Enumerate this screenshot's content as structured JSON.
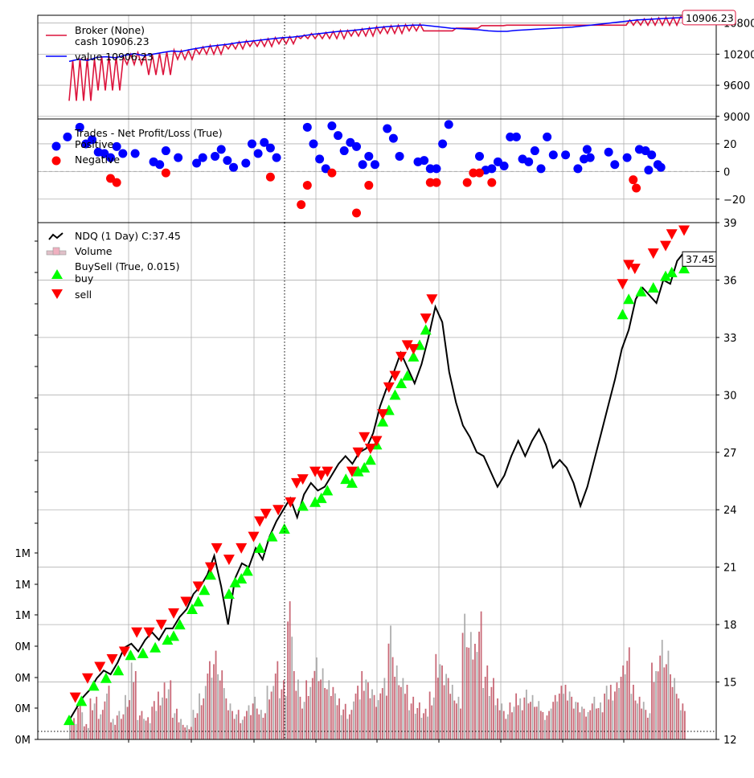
{
  "chart_data": [
    {
      "type": "line",
      "panel": "broker",
      "legend": [
        "Broker (None)",
        "cash 10906.23",
        "value 10906.23"
      ],
      "last_value_label": "10906.23",
      "ylim": [
        8950,
        10950
      ],
      "yticks": [
        "9000",
        "9600",
        "10200",
        "10800"
      ],
      "colors": {
        "cash": "#dc143c",
        "value": "#0000ff"
      },
      "series": [
        {
          "name": "value 10906.23",
          "values": [
            10060,
            10100,
            10080,
            10140,
            10150,
            10130,
            10180,
            10210,
            10170,
            10200,
            10230,
            10260,
            10250,
            10290,
            10320,
            10350,
            10370,
            10390,
            10420,
            10440,
            10460,
            10480,
            10500,
            10520,
            10530,
            10550,
            10580,
            10600,
            10620,
            10640,
            10650,
            10670,
            10690,
            10710,
            10730,
            10740,
            10750,
            10760,
            10760,
            10740,
            10720,
            10700,
            10690,
            10680,
            10670,
            10650,
            10640,
            10640,
            10660,
            10670,
            10680,
            10690,
            10700,
            10710,
            10720,
            10740,
            10760,
            10780,
            10800,
            10820,
            10840,
            10860,
            10870,
            10880,
            10890,
            10900,
            10906.23
          ]
        },
        {
          "name": "cash 10906.23",
          "values": [
            9300,
            9500,
            10000,
            9800,
            10100,
            10200,
            10300,
            10350,
            10400,
            10500,
            10500,
            10550,
            10600,
            10650,
            10650,
            10700,
            10750,
            10760,
            10760,
            10760,
            10760,
            10760,
            10760,
            10760,
            10906.23
          ]
        }
      ],
      "grid": true
    },
    {
      "type": "scatter",
      "panel": "trades",
      "legend": [
        "Trades - Net Profit/Loss (True)",
        "Positive",
        "Negative"
      ],
      "ylim": [
        -37,
        38
      ],
      "yticks": [
        "20",
        "0",
        "−20"
      ],
      "colors": {
        "positive": "#0000ff",
        "negative": "#ff0000"
      },
      "positive": [
        [
          0.03,
          25
        ],
        [
          0.05,
          32
        ],
        [
          0.06,
          20
        ],
        [
          0.07,
          23
        ],
        [
          0.08,
          14
        ],
        [
          0.09,
          13
        ],
        [
          0.1,
          10
        ],
        [
          0.11,
          18
        ],
        [
          0.12,
          13
        ],
        [
          0.14,
          13
        ],
        [
          0.17,
          7
        ],
        [
          0.18,
          5
        ],
        [
          0.19,
          15
        ],
        [
          0.21,
          10
        ],
        [
          0.24,
          6
        ],
        [
          0.25,
          10
        ],
        [
          0.27,
          11
        ],
        [
          0.28,
          16
        ],
        [
          0.29,
          8
        ],
        [
          0.3,
          3
        ],
        [
          0.32,
          6
        ],
        [
          0.33,
          20
        ],
        [
          0.34,
          13
        ],
        [
          0.35,
          21
        ],
        [
          0.36,
          17
        ],
        [
          0.37,
          10
        ],
        [
          0.42,
          32
        ],
        [
          0.43,
          20
        ],
        [
          0.44,
          9
        ],
        [
          0.45,
          2
        ],
        [
          0.46,
          33
        ],
        [
          0.47,
          26
        ],
        [
          0.48,
          15
        ],
        [
          0.49,
          21
        ],
        [
          0.5,
          18
        ],
        [
          0.51,
          5
        ],
        [
          0.52,
          11
        ],
        [
          0.53,
          5
        ],
        [
          0.55,
          31
        ],
        [
          0.56,
          24
        ],
        [
          0.57,
          11
        ],
        [
          0.6,
          7
        ],
        [
          0.61,
          8
        ],
        [
          0.62,
          2
        ],
        [
          0.63,
          2
        ],
        [
          0.64,
          20
        ],
        [
          0.65,
          34
        ],
        [
          0.7,
          11
        ],
        [
          0.71,
          1
        ],
        [
          0.72,
          2
        ],
        [
          0.73,
          7
        ],
        [
          0.74,
          4
        ],
        [
          0.75,
          25
        ],
        [
          0.76,
          25
        ],
        [
          0.77,
          9
        ],
        [
          0.78,
          7
        ],
        [
          0.79,
          15
        ],
        [
          0.8,
          2
        ],
        [
          0.81,
          25
        ],
        [
          0.82,
          12
        ],
        [
          0.84,
          12
        ],
        [
          0.86,
          2
        ],
        [
          0.87,
          9
        ],
        [
          0.875,
          16
        ],
        [
          0.88,
          10
        ],
        [
          0.91,
          14
        ],
        [
          0.92,
          5
        ],
        [
          0.94,
          10
        ],
        [
          0.96,
          16
        ],
        [
          0.97,
          15
        ],
        [
          0.975,
          1
        ],
        [
          0.98,
          12
        ],
        [
          0.99,
          5
        ],
        [
          0.995,
          3
        ]
      ],
      "negative": [
        [
          0.1,
          -5
        ],
        [
          0.11,
          -8
        ],
        [
          0.19,
          -1
        ],
        [
          0.36,
          -4
        ],
        [
          0.41,
          -24
        ],
        [
          0.42,
          -10
        ],
        [
          0.46,
          -1
        ],
        [
          0.5,
          -30
        ],
        [
          0.52,
          -10
        ],
        [
          0.62,
          -8
        ],
        [
          0.63,
          -8
        ],
        [
          0.68,
          -8
        ],
        [
          0.69,
          -1
        ],
        [
          0.7,
          -1
        ],
        [
          0.72,
          -8
        ],
        [
          0.95,
          -6
        ],
        [
          0.955,
          -12
        ]
      ],
      "grid": true
    },
    {
      "type": "line",
      "panel": "price",
      "legend": [
        "NDQ (1 Day) C:37.45",
        "Volume",
        "BuySell (True, 0.015)",
        "buy",
        "sell"
      ],
      "last_value_label": "37.45",
      "ylim": [
        12,
        39
      ],
      "yticks": [
        "39",
        "36",
        "33",
        "30",
        "27",
        "24",
        "21",
        "18",
        "15",
        "12"
      ],
      "volume_ticks": [
        "1M",
        "1M",
        "1M",
        "0M",
        "0M",
        "0M",
        "0M"
      ],
      "colors": {
        "price": "#000000",
        "volume_up": "#c05060",
        "volume_down": "#a0a0a0",
        "buy": "#00ff00",
        "sell": "#ff0000"
      },
      "series": [
        {
          "name": "NDQ (1 Day) C:37.45",
          "values": [
            13.0,
            13.6,
            14.2,
            14.6,
            15.2,
            15.6,
            15.4,
            16.0,
            16.8,
            17.0,
            16.6,
            17.2,
            17.6,
            17.2,
            17.8,
            17.8,
            18.4,
            18.8,
            19.6,
            20.0,
            20.6,
            21.6,
            20.0,
            18.0,
            20.4,
            21.2,
            21.0,
            22.0,
            21.4,
            22.6,
            23.4,
            24.0,
            24.6,
            23.6,
            24.8,
            25.4,
            25.0,
            25.2,
            25.8,
            26.4,
            26.8,
            26.4,
            27.0,
            27.2,
            28.0,
            29.4,
            30.4,
            31.2,
            32.2,
            31.4,
            30.6,
            31.6,
            33.0,
            34.6,
            33.8,
            31.2,
            29.6,
            28.4,
            27.8,
            27.0,
            26.8,
            26.0,
            25.2,
            25.8,
            26.8,
            27.6,
            26.8,
            27.6,
            28.2,
            27.4,
            26.2,
            26.6,
            26.2,
            25.4,
            24.2,
            25.2,
            26.6,
            28.0,
            29.4,
            30.8,
            32.4,
            33.4,
            35.0,
            35.6,
            35.2,
            34.8,
            36.0,
            35.8,
            37.0,
            37.45
          ]
        }
      ],
      "buy": [
        [
          0.0,
          13.0
        ],
        [
          0.02,
          14.0
        ],
        [
          0.04,
          14.8
        ],
        [
          0.06,
          15.2
        ],
        [
          0.08,
          15.6
        ],
        [
          0.1,
          16.4
        ],
        [
          0.12,
          16.5
        ],
        [
          0.14,
          16.8
        ],
        [
          0.16,
          17.2
        ],
        [
          0.17,
          17.4
        ],
        [
          0.18,
          18.0
        ],
        [
          0.2,
          18.8
        ],
        [
          0.21,
          19.2
        ],
        [
          0.22,
          19.8
        ],
        [
          0.23,
          20.6
        ],
        [
          0.26,
          19.6
        ],
        [
          0.27,
          20.2
        ],
        [
          0.28,
          20.4
        ],
        [
          0.29,
          20.8
        ],
        [
          0.31,
          22.0
        ],
        [
          0.33,
          22.6
        ],
        [
          0.35,
          23.0
        ],
        [
          0.38,
          24.2
        ],
        [
          0.4,
          24.4
        ],
        [
          0.41,
          24.6
        ],
        [
          0.42,
          25.0
        ],
        [
          0.45,
          25.6
        ],
        [
          0.46,
          25.4
        ],
        [
          0.47,
          26.0
        ],
        [
          0.48,
          26.2
        ],
        [
          0.49,
          26.6
        ],
        [
          0.5,
          27.4
        ],
        [
          0.51,
          28.6
        ],
        [
          0.52,
          29.2
        ],
        [
          0.53,
          30.0
        ],
        [
          0.54,
          30.6
        ],
        [
          0.55,
          31.0
        ],
        [
          0.56,
          32.0
        ],
        [
          0.57,
          32.6
        ],
        [
          0.58,
          33.4
        ],
        [
          0.9,
          34.2
        ],
        [
          0.91,
          35.0
        ],
        [
          0.93,
          35.4
        ],
        [
          0.95,
          35.6
        ],
        [
          0.97,
          36.2
        ],
        [
          0.98,
          36.4
        ],
        [
          1.0,
          36.6
        ]
      ],
      "sell": [
        [
          0.01,
          14.2
        ],
        [
          0.03,
          15.2
        ],
        [
          0.05,
          15.8
        ],
        [
          0.07,
          16.2
        ],
        [
          0.09,
          16.6
        ],
        [
          0.11,
          17.6
        ],
        [
          0.13,
          17.6
        ],
        [
          0.15,
          18.0
        ],
        [
          0.17,
          18.6
        ],
        [
          0.19,
          19.2
        ],
        [
          0.21,
          20.0
        ],
        [
          0.23,
          21.0
        ],
        [
          0.24,
          22.0
        ],
        [
          0.26,
          21.4
        ],
        [
          0.28,
          22.0
        ],
        [
          0.3,
          22.6
        ],
        [
          0.31,
          23.4
        ],
        [
          0.32,
          23.8
        ],
        [
          0.34,
          24.0
        ],
        [
          0.36,
          24.4
        ],
        [
          0.37,
          25.4
        ],
        [
          0.38,
          25.6
        ],
        [
          0.4,
          26.0
        ],
        [
          0.41,
          25.8
        ],
        [
          0.42,
          26.0
        ],
        [
          0.46,
          26.0
        ],
        [
          0.47,
          27.0
        ],
        [
          0.48,
          27.8
        ],
        [
          0.49,
          27.2
        ],
        [
          0.5,
          27.6
        ],
        [
          0.51,
          29.0
        ],
        [
          0.52,
          30.4
        ],
        [
          0.53,
          31.0
        ],
        [
          0.54,
          32.0
        ],
        [
          0.55,
          32.6
        ],
        [
          0.56,
          32.4
        ],
        [
          0.58,
          34.0
        ],
        [
          0.59,
          35.0
        ],
        [
          0.9,
          35.8
        ],
        [
          0.91,
          36.8
        ],
        [
          0.92,
          36.6
        ],
        [
          0.95,
          37.4
        ],
        [
          0.97,
          37.8
        ],
        [
          0.98,
          38.4
        ],
        [
          1.0,
          38.6
        ]
      ],
      "volume": [
        0.15,
        0.25,
        0.1,
        0.3,
        0.2,
        0.35,
        0.15,
        0.2,
        0.3,
        0.5,
        0.2,
        0.15,
        0.25,
        0.35,
        0.4,
        0.2,
        0.15,
        0.1,
        0.2,
        0.3,
        0.55,
        0.6,
        0.45,
        0.3,
        0.2,
        0.15,
        0.25,
        0.3,
        0.2,
        0.35,
        0.55,
        0.4,
        0.9,
        0.5,
        0.3,
        0.4,
        0.6,
        0.5,
        0.4,
        0.3,
        0.25,
        0.2,
        0.35,
        0.5,
        0.4,
        0.3,
        0.45,
        0.8,
        0.5,
        0.4,
        0.3,
        0.25,
        0.2,
        0.35,
        0.6,
        0.5,
        0.4,
        0.3,
        0.85,
        0.7,
        0.9,
        0.5,
        0.4,
        0.3,
        0.2,
        0.25,
        0.3,
        0.35,
        0.3,
        0.25,
        0.2,
        0.3,
        0.35,
        0.4,
        0.3,
        0.25,
        0.2,
        0.3,
        0.25,
        0.35,
        0.4,
        0.5,
        0.6,
        0.4,
        0.3,
        0.2,
        0.5,
        0.7,
        0.6,
        0.4,
        0.3,
        0.2
      ],
      "grid": true
    }
  ]
}
